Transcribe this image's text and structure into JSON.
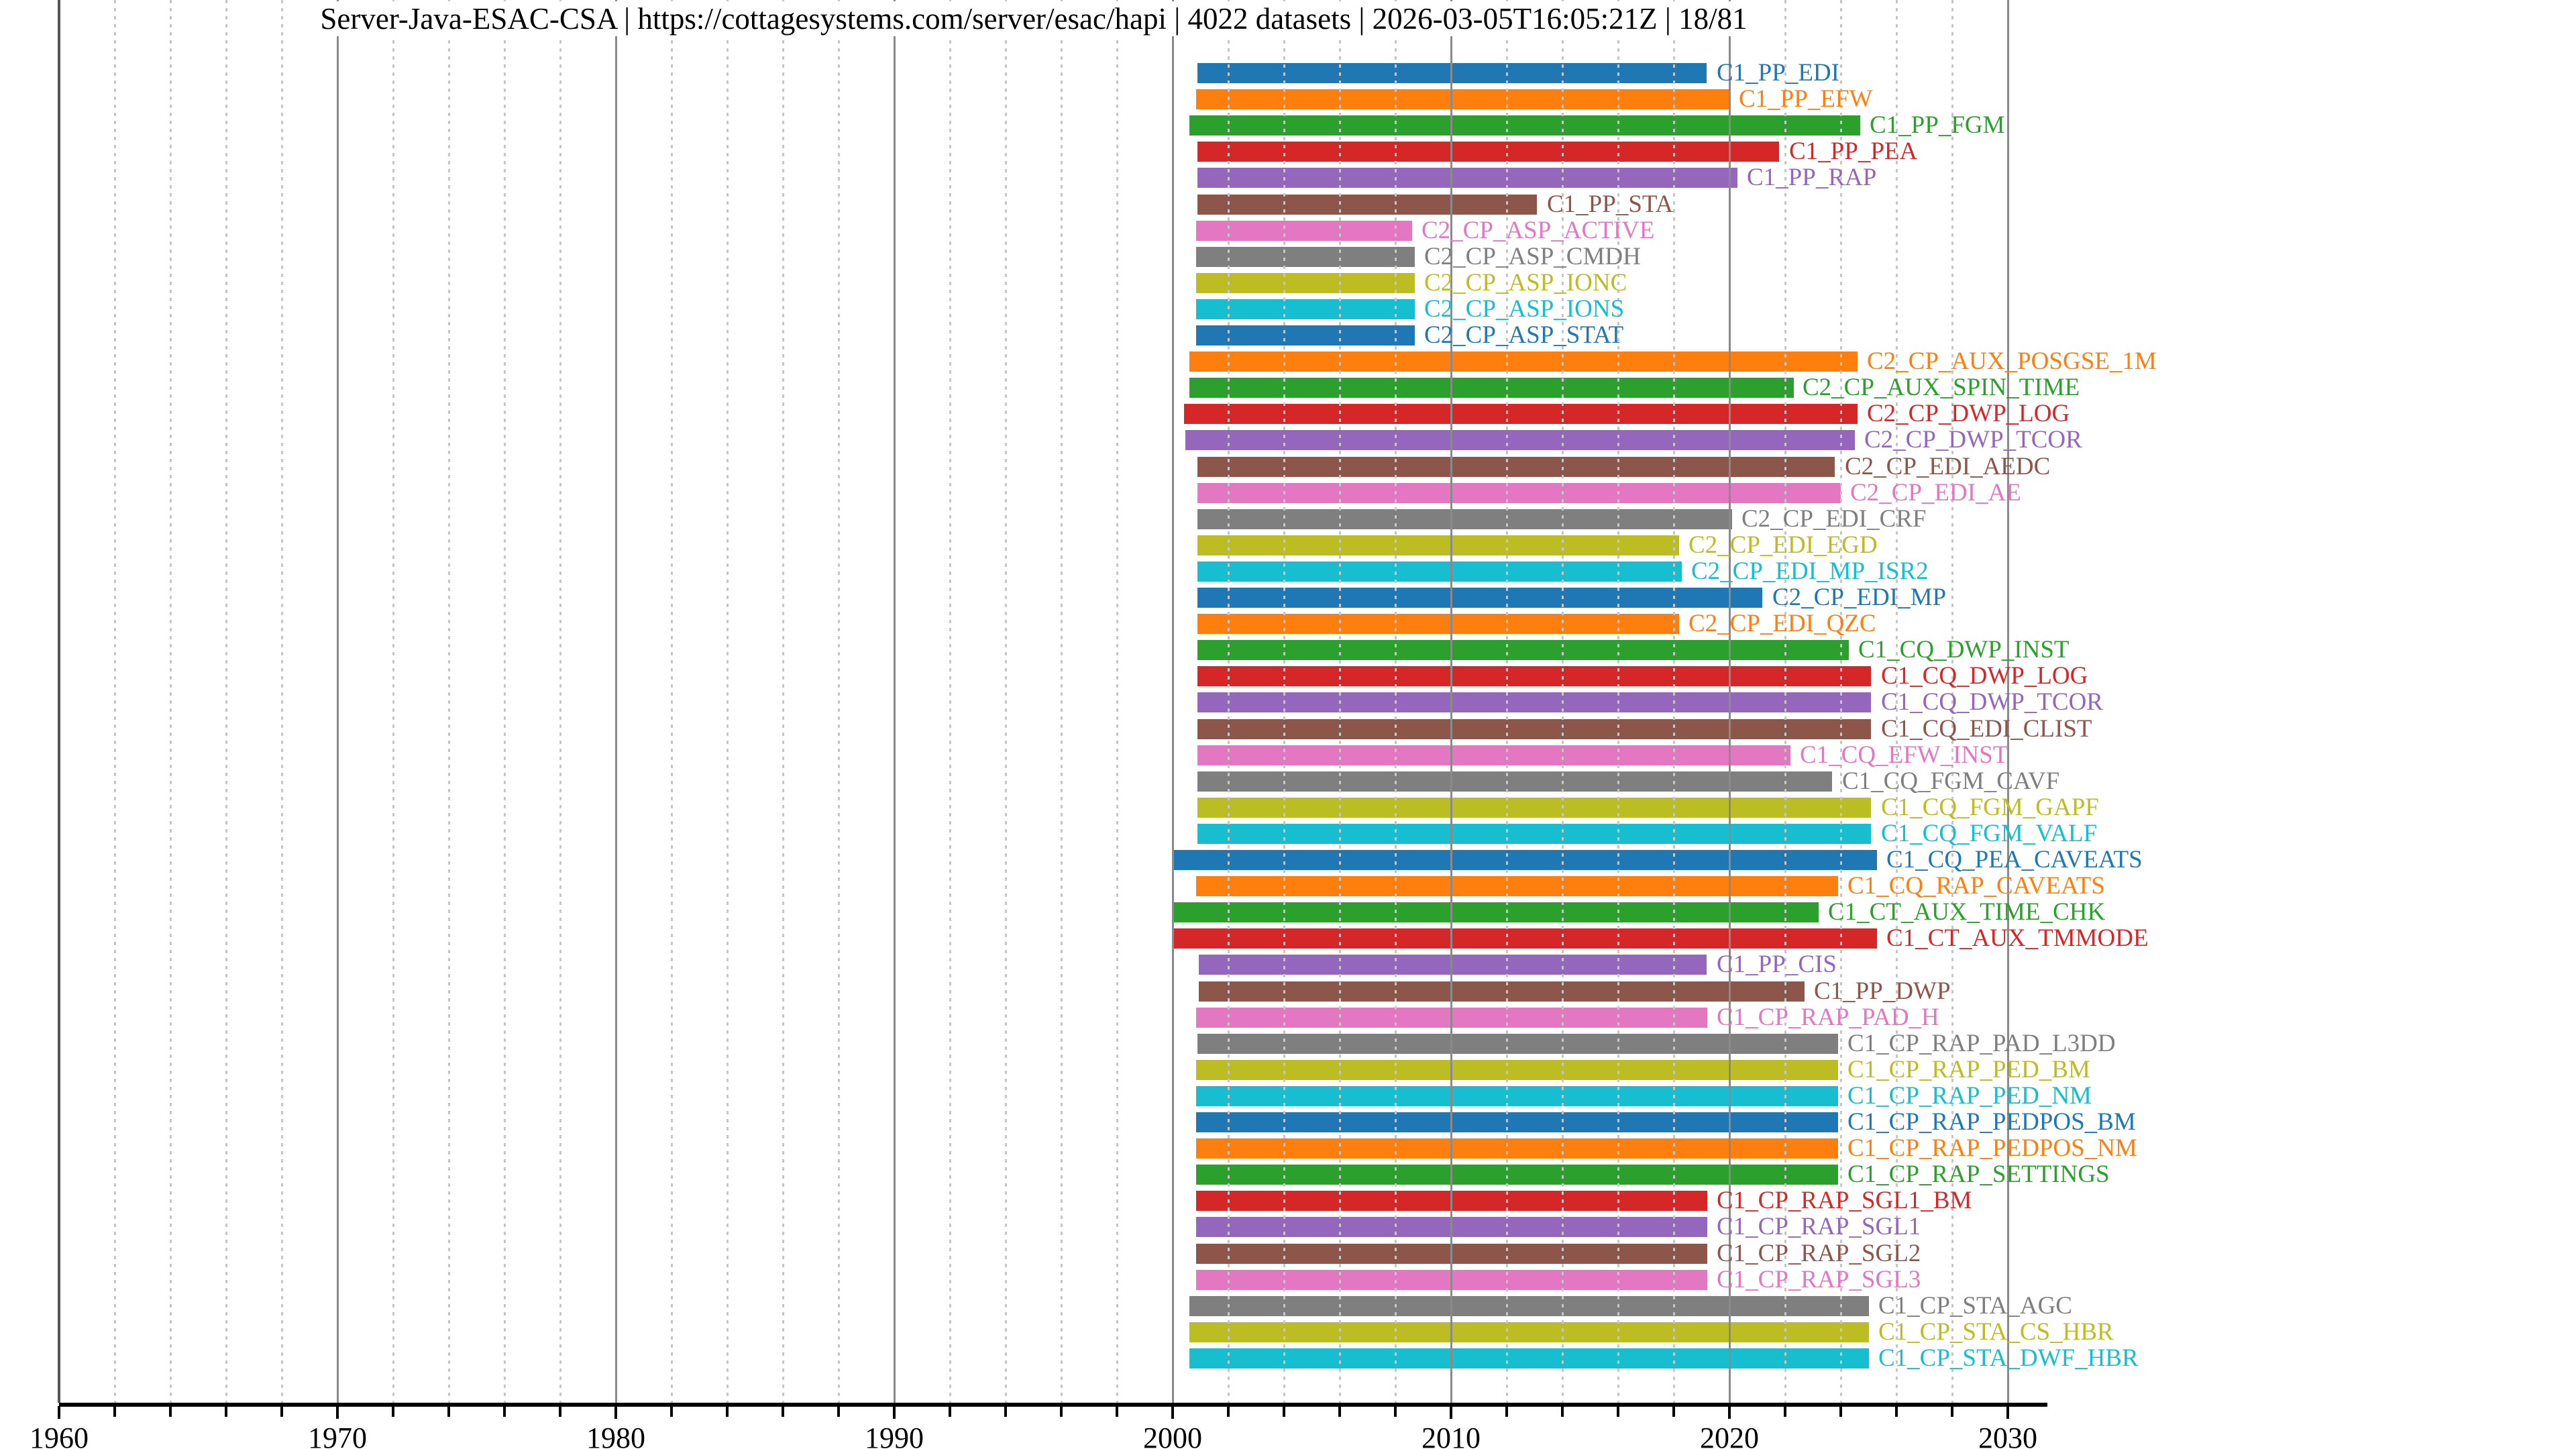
{
  "title": "Server-Java-ESAC-CSA | https://cottagesystems.com/server/esac/hapi | 4022 datasets | 2026-03-05T16:05:21Z | 18/81",
  "title_parts": {
    "server_id": "Server-Java-ESAC-CSA",
    "server_url": "https://cottagesystems.com/server/esac/hapi",
    "dataset_count": "4022 datasets",
    "generated_timestamp": "2026-03-05T16:05:21Z",
    "page_indicator": "18/81"
  },
  "chart_data": {
    "type": "bar",
    "subtype": "horizontal-timeline-gantt",
    "title": "Server-Java-ESAC-CSA | https://cottagesystems.com/server/esac/hapi | 4022 datasets | 2026-03-05T16:05:21Z | 18/81",
    "xlabel": "",
    "ylabel": "",
    "xlim": [
      1960,
      2031.4
    ],
    "x_major_ticks": [
      1960,
      1970,
      1980,
      1990,
      2000,
      2010,
      2020,
      2030
    ],
    "x_tick_labels": [
      "1960",
      "1970",
      "1980",
      "1990",
      "2000",
      "2010",
      "2020",
      "2030"
    ],
    "x_minor_tick_step_years": 2,
    "grid": {
      "major": "solid",
      "minor": "dashed",
      "major_color": "#8a8a8a",
      "minor_color": "#c6c6c6"
    },
    "legend": "none",
    "palette_tab10": [
      "#1f77b4",
      "#ff7f0e",
      "#2ca02c",
      "#d62728",
      "#9467bd",
      "#8c564b",
      "#e377c2",
      "#7f7f7f",
      "#bcbd22",
      "#17becf"
    ],
    "series": [
      {
        "label": "C1_PP_EDI",
        "color": "#1f77b4",
        "start_year": 2000.9,
        "end_year": 2019.2
      },
      {
        "label": "C1_PP_EFW",
        "color": "#ff7f0e",
        "start_year": 2000.85,
        "end_year": 2020.0
      },
      {
        "label": "C1_PP_FGM",
        "color": "#2ca02c",
        "start_year": 2000.6,
        "end_year": 2024.7
      },
      {
        "label": "C1_PP_PEA",
        "color": "#d62728",
        "start_year": 2000.9,
        "end_year": 2021.8
      },
      {
        "label": "C1_PP_RAP",
        "color": "#9467bd",
        "start_year": 2000.9,
        "end_year": 2020.3
      },
      {
        "label": "C1_PP_STA",
        "color": "#8c564b",
        "start_year": 2000.9,
        "end_year": 2013.1
      },
      {
        "label": "C2_CP_ASP_ACTIVE",
        "color": "#e377c2",
        "start_year": 2000.85,
        "end_year": 2008.6
      },
      {
        "label": "C2_CP_ASP_CMDH",
        "color": "#7f7f7f",
        "start_year": 2000.85,
        "end_year": 2008.7
      },
      {
        "label": "C2_CP_ASP_IONC",
        "color": "#bcbd22",
        "start_year": 2000.85,
        "end_year": 2008.7
      },
      {
        "label": "C2_CP_ASP_IONS",
        "color": "#17becf",
        "start_year": 2000.85,
        "end_year": 2008.7
      },
      {
        "label": "C2_CP_ASP_STAT",
        "color": "#1f77b4",
        "start_year": 2000.85,
        "end_year": 2008.7
      },
      {
        "label": "C2_CP_AUX_POSGSE_1M",
        "color": "#ff7f0e",
        "start_year": 2000.6,
        "end_year": 2024.6
      },
      {
        "label": "C2_CP_AUX_SPIN_TIME",
        "color": "#2ca02c",
        "start_year": 2000.6,
        "end_year": 2022.3
      },
      {
        "label": "C2_CP_DWP_LOG",
        "color": "#d62728",
        "start_year": 2000.4,
        "end_year": 2024.6
      },
      {
        "label": "C2_CP_DWP_TCOR",
        "color": "#9467bd",
        "start_year": 2000.45,
        "end_year": 2024.5
      },
      {
        "label": "C2_CP_EDI_AEDC",
        "color": "#8c564b",
        "start_year": 2000.9,
        "end_year": 2023.8
      },
      {
        "label": "C2_CP_EDI_AE",
        "color": "#e377c2",
        "start_year": 2000.9,
        "end_year": 2024.0
      },
      {
        "label": "C2_CP_EDI_CRF",
        "color": "#7f7f7f",
        "start_year": 2000.9,
        "end_year": 2020.1
      },
      {
        "label": "C2_CP_EDI_EGD",
        "color": "#bcbd22",
        "start_year": 2000.9,
        "end_year": 2018.2
      },
      {
        "label": "C2_CP_EDI_MP_ISR2",
        "color": "#17becf",
        "start_year": 2000.9,
        "end_year": 2018.3
      },
      {
        "label": "C2_CP_EDI_MP",
        "color": "#1f77b4",
        "start_year": 2000.9,
        "end_year": 2021.2
      },
      {
        "label": "C2_CP_EDI_QZC",
        "color": "#ff7f0e",
        "start_year": 2000.9,
        "end_year": 2018.2
      },
      {
        "label": "C1_CQ_DWP_INST",
        "color": "#2ca02c",
        "start_year": 2000.9,
        "end_year": 2024.3
      },
      {
        "label": "C1_CQ_DWP_LOG",
        "color": "#d62728",
        "start_year": 2000.9,
        "end_year": 2025.1
      },
      {
        "label": "C1_CQ_DWP_TCOR",
        "color": "#9467bd",
        "start_year": 2000.9,
        "end_year": 2025.1
      },
      {
        "label": "C1_CQ_EDI_CLIST",
        "color": "#8c564b",
        "start_year": 2000.9,
        "end_year": 2025.1
      },
      {
        "label": "C1_CQ_EFW_INST",
        "color": "#e377c2",
        "start_year": 2000.9,
        "end_year": 2022.2
      },
      {
        "label": "C1_CQ_FGM_CAVF",
        "color": "#7f7f7f",
        "start_year": 2000.9,
        "end_year": 2023.7
      },
      {
        "label": "C1_CQ_FGM_GAPF",
        "color": "#bcbd22",
        "start_year": 2000.9,
        "end_year": 2025.1
      },
      {
        "label": "C1_CQ_FGM_VALF",
        "color": "#17becf",
        "start_year": 2000.9,
        "end_year": 2025.1
      },
      {
        "label": "C1_CQ_PEA_CAVEATS",
        "color": "#1f77b4",
        "start_year": 2000.0,
        "end_year": 2025.3
      },
      {
        "label": "C1_CQ_RAP_CAVEATS",
        "color": "#ff7f0e",
        "start_year": 2000.85,
        "end_year": 2023.9
      },
      {
        "label": "C1_CT_AUX_TIME_CHK",
        "color": "#2ca02c",
        "start_year": 2000.0,
        "end_year": 2023.2
      },
      {
        "label": "C1_CT_AUX_TMMODE",
        "color": "#d62728",
        "start_year": 2000.0,
        "end_year": 2025.3
      },
      {
        "label": "C1_PP_CIS",
        "color": "#9467bd",
        "start_year": 2000.95,
        "end_year": 2019.2
      },
      {
        "label": "C1_PP_DWP",
        "color": "#8c564b",
        "start_year": 2000.95,
        "end_year": 2022.7
      },
      {
        "label": "C1_CP_RAP_PAD_H",
        "color": "#e377c2",
        "start_year": 2000.85,
        "end_year": 2019.2
      },
      {
        "label": "C1_CP_RAP_PAD_L3DD",
        "color": "#7f7f7f",
        "start_year": 2000.9,
        "end_year": 2023.9
      },
      {
        "label": "C1_CP_RAP_PED_BM",
        "color": "#bcbd22",
        "start_year": 2000.85,
        "end_year": 2023.9
      },
      {
        "label": "C1_CP_RAP_PED_NM",
        "color": "#17becf",
        "start_year": 2000.85,
        "end_year": 2023.9
      },
      {
        "label": "C1_CP_RAP_PEDPOS_BM",
        "color": "#1f77b4",
        "start_year": 2000.85,
        "end_year": 2023.9
      },
      {
        "label": "C1_CP_RAP_PEDPOS_NM",
        "color": "#ff7f0e",
        "start_year": 2000.85,
        "end_year": 2023.9
      },
      {
        "label": "C1_CP_RAP_SETTINGS",
        "color": "#2ca02c",
        "start_year": 2000.85,
        "end_year": 2023.9
      },
      {
        "label": "C1_CP_RAP_SGL1_BM",
        "color": "#d62728",
        "start_year": 2000.85,
        "end_year": 2019.2
      },
      {
        "label": "C1_CP_RAP_SGL1",
        "color": "#9467bd",
        "start_year": 2000.85,
        "end_year": 2019.2
      },
      {
        "label": "C1_CP_RAP_SGL2",
        "color": "#8c564b",
        "start_year": 2000.85,
        "end_year": 2019.2
      },
      {
        "label": "C1_CP_RAP_SGL3",
        "color": "#e377c2",
        "start_year": 2000.85,
        "end_year": 2019.2
      },
      {
        "label": "C1_CP_STA_AGC",
        "color": "#7f7f7f",
        "start_year": 2000.6,
        "end_year": 2025.0
      },
      {
        "label": "C1_CP_STA_CS_HBR",
        "color": "#bcbd22",
        "start_year": 2000.6,
        "end_year": 2025.0
      },
      {
        "label": "C1_CP_STA_DWF_HBR",
        "color": "#17becf",
        "start_year": 2000.6,
        "end_year": 2025.0
      }
    ]
  }
}
